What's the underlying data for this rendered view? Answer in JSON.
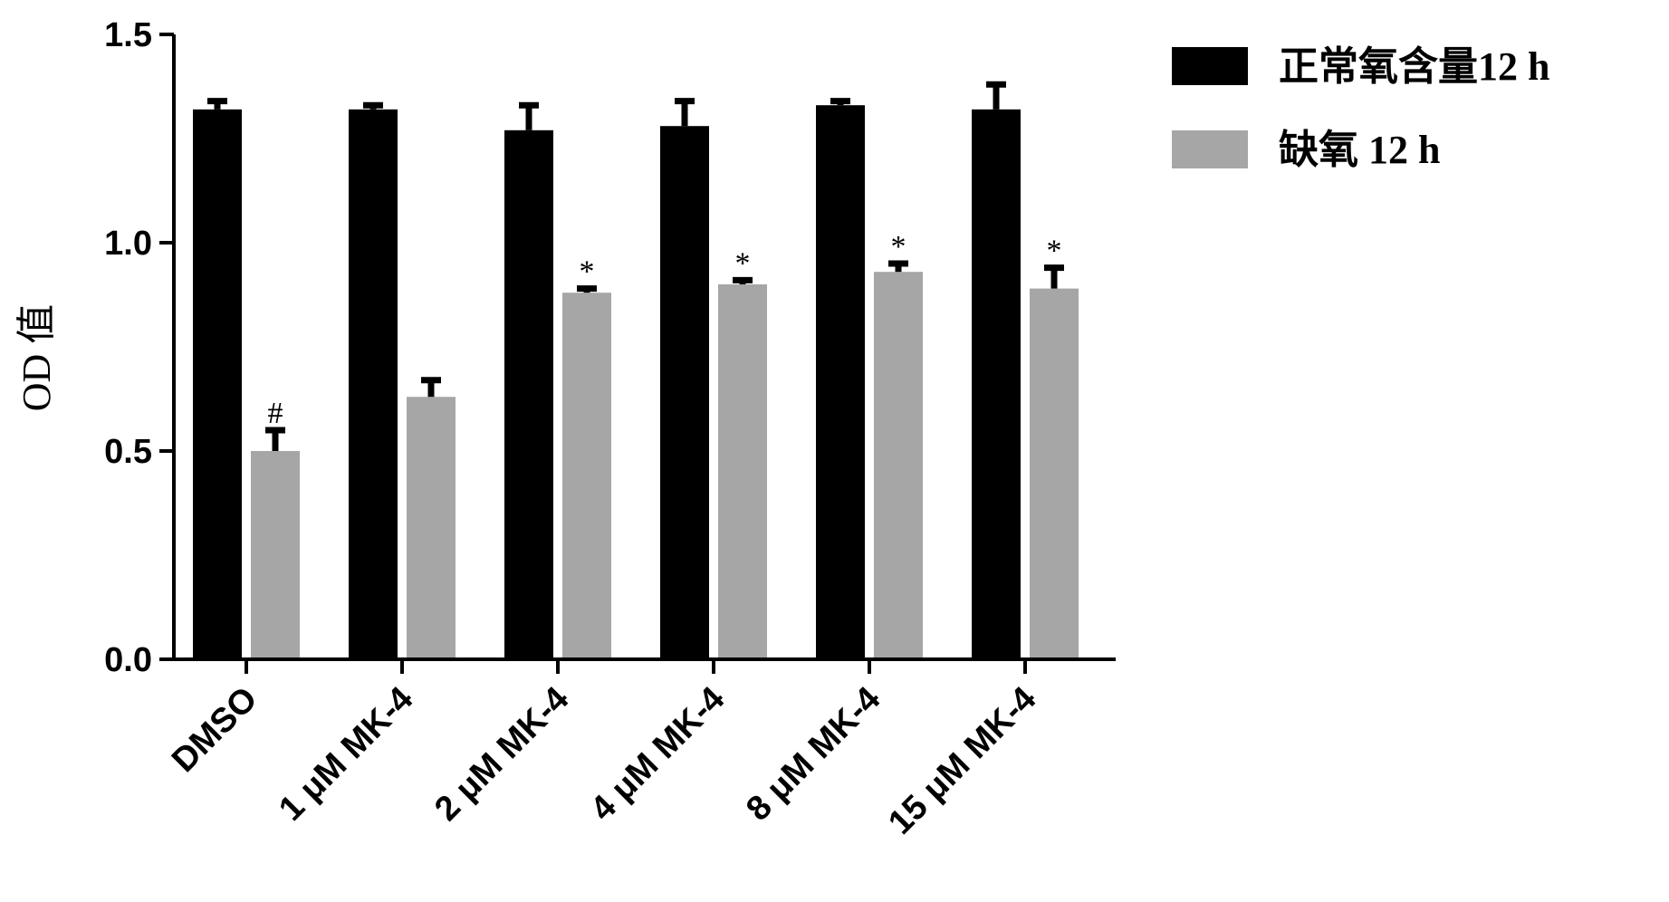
{
  "chart_data": {
    "type": "bar",
    "title": "",
    "xlabel": "",
    "ylabel": "OD 值",
    "ylim": [
      0,
      1.5
    ],
    "yticks": [
      "0.0",
      "0.5",
      "1.0",
      "1.5"
    ],
    "grid": false,
    "legend_position": "top-right",
    "categories": [
      "DMSO",
      "1 μM MK-4",
      "2 μM MK-4",
      "4 μM MK-4",
      "8 μM MK-4",
      "15 μM MK-4"
    ],
    "series": [
      {
        "name": "正常氧含量12 h",
        "color": "#000000",
        "values": [
          1.32,
          1.32,
          1.27,
          1.28,
          1.33,
          1.32
        ],
        "errors": [
          0.02,
          0.01,
          0.06,
          0.06,
          0.01,
          0.06
        ],
        "marks": [
          "",
          "",
          "",
          "",
          "",
          ""
        ]
      },
      {
        "name": "缺氧 12 h",
        "color": "#a6a6a6",
        "values": [
          0.5,
          0.63,
          0.88,
          0.9,
          0.93,
          0.89
        ],
        "errors": [
          0.05,
          0.04,
          0.01,
          0.01,
          0.02,
          0.05
        ],
        "marks": [
          "#",
          "",
          "*",
          "*",
          "*",
          "*"
        ]
      }
    ]
  }
}
